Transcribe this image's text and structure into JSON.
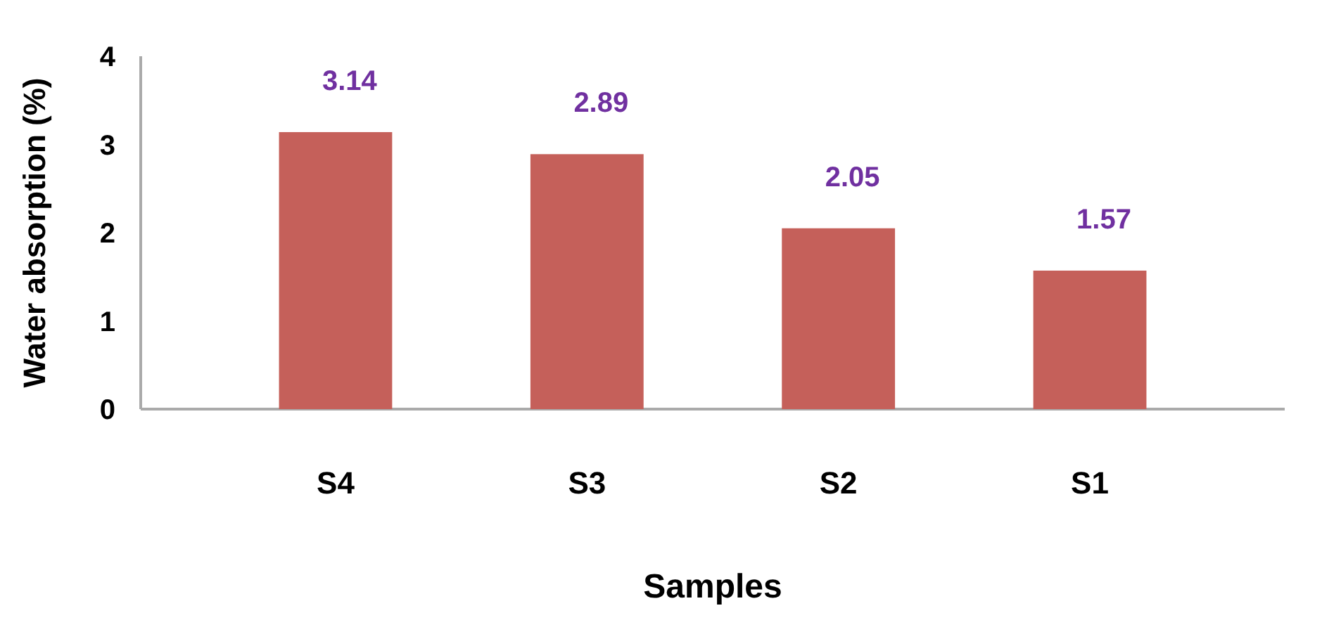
{
  "chart_data": {
    "type": "bar",
    "xlabel": "Samples",
    "ylabel": "Water absorption (%)",
    "categories": [
      "S4",
      "S3",
      "S2",
      "S1"
    ],
    "values": [
      3.14,
      2.89,
      2.05,
      1.57
    ],
    "color": "#c5605a",
    "ylim": [
      0,
      4
    ],
    "yticks": [
      0,
      1,
      2,
      3,
      4
    ],
    "data_labels": true
  }
}
